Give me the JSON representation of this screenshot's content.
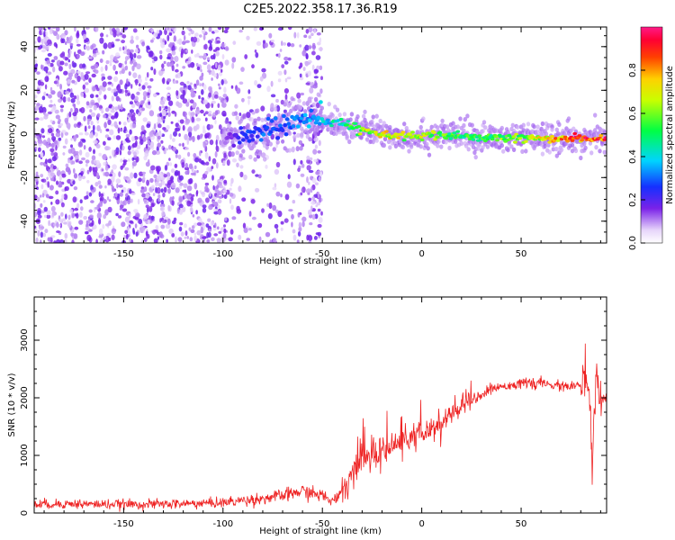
{
  "chart_data": [
    {
      "type": "heatmap",
      "title": "C2E5.2022.358.17.36.R19",
      "xlabel": "Height of straight line (km)",
      "ylabel": "Frequency (Hz)",
      "xlim": [
        -195,
        93
      ],
      "ylim": [
        -50,
        49
      ],
      "xticks": [
        -150,
        -100,
        -50,
        0,
        50
      ],
      "yticks": [
        -40,
        -20,
        0,
        20,
        40
      ],
      "colorbar": {
        "label": "Normalized spectral amplitude",
        "range": [
          0,
          1
        ],
        "ticks": [
          "0.0",
          "0.2",
          "0.4",
          "0.6",
          "0.8"
        ]
      },
      "ridge": {
        "description": "signal frequency vs height",
        "x": [
          -100,
          -90,
          -80,
          -70,
          -60,
          -50,
          -40,
          -30,
          -20,
          -10,
          0,
          10,
          20,
          30,
          40,
          50,
          60,
          70,
          80,
          88
        ],
        "frequency": [
          -2,
          -1,
          1,
          4,
          6,
          6,
          5,
          2,
          0,
          -1,
          -1,
          -1,
          -1,
          -2,
          -2,
          -2,
          -2,
          -2,
          -2,
          -2
        ],
        "amplitude": [
          0.1,
          0.25,
          0.3,
          0.3,
          0.35,
          0.4,
          0.5,
          0.65,
          0.75,
          0.7,
          0.7,
          0.6,
          0.55,
          0.55,
          0.6,
          0.65,
          0.75,
          0.85,
          0.9,
          0.9
        ]
      },
      "noise_region_x": [
        -195,
        -50
      ]
    },
    {
      "type": "line",
      "title": "",
      "xlabel": "Height of straight line (km)",
      "ylabel": "SNR (10 * v/v)",
      "xlim": [
        -195,
        93
      ],
      "ylim": [
        0,
        3750
      ],
      "xticks": [
        -150,
        -100,
        -50,
        0,
        50
      ],
      "yticks": [
        0,
        1000,
        2000,
        3000
      ],
      "series": [
        {
          "name": "SNR",
          "color": "#ee2222",
          "x": [
            -195,
            -180,
            -160,
            -140,
            -120,
            -100,
            -90,
            -80,
            -70,
            -60,
            -50,
            -45,
            -40,
            -35,
            -30,
            -25,
            -20,
            -15,
            -10,
            -5,
            0,
            5,
            10,
            15,
            20,
            25,
            30,
            35,
            40,
            50,
            60,
            70,
            80,
            84,
            86,
            88,
            90,
            93
          ],
          "y": [
            150,
            160,
            150,
            150,
            160,
            180,
            220,
            250,
            300,
            380,
            300,
            200,
            350,
            700,
            1000,
            950,
            1100,
            1150,
            1250,
            1300,
            1350,
            1450,
            1550,
            1700,
            1850,
            1950,
            2050,
            2150,
            2200,
            2250,
            2250,
            2200,
            2200,
            2250,
            1000,
            2600,
            2000,
            2100
          ]
        }
      ]
    }
  ]
}
